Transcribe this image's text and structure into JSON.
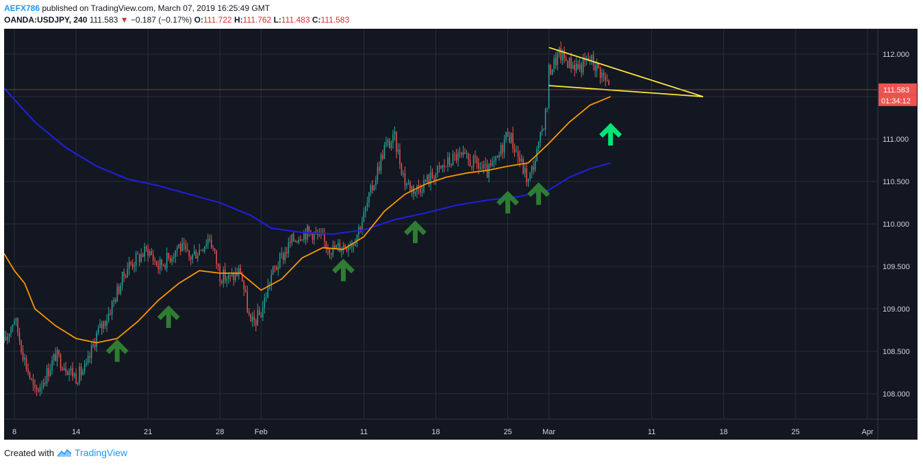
{
  "header": {
    "author": "AEFX786",
    "published_text": "published on TradingView.com, March 07, 2019 16:25:49 GMT",
    "symbol": "OANDA:USDJPY, 240",
    "last": "111.583",
    "change_arrow": "▼",
    "change": "−0.187 (−0.17%)",
    "open_label": "O:",
    "open": "111.722",
    "high_label": "H:",
    "high": "111.762",
    "low_label": "L:",
    "low": "111.483",
    "close_label": "C:",
    "close": "111.583"
  },
  "footer": {
    "created_with": "Created with",
    "brand": "TradingView",
    "logo_icon": "tradingview-logo-icon"
  },
  "colors": {
    "background": "#131722",
    "grid": "#2a2e39",
    "up": "#26a69a",
    "down": "#ef5350",
    "ma_fast": "#ff9800",
    "ma_slow": "#1f1fd6",
    "triangle": "#ffeb3b",
    "arrow_dark": "#2e7d32",
    "arrow_bright": "#00e676",
    "price_line": "#ef5350",
    "price_label_bg": "#ef5350"
  },
  "price_label": "111.583",
  "countdown_label": "01:34:12",
  "chart_data": {
    "type": "candlestick",
    "symbol": "OANDA:USDJPY",
    "timeframe": "240",
    "y_axis": {
      "range": [
        107.7,
        112.3
      ],
      "ticks": [
        "108.000",
        "108.500",
        "109.000",
        "109.500",
        "110.000",
        "110.500",
        "111.000",
        "111.500",
        "112.000"
      ]
    },
    "x_axis": {
      "start": "2019-01-07",
      "end": "2019-04-02",
      "ticks": [
        {
          "date": "2019-01-08",
          "label": "8"
        },
        {
          "date": "2019-01-14",
          "label": "14"
        },
        {
          "date": "2019-01-21",
          "label": "21"
        },
        {
          "date": "2019-01-28",
          "label": "28"
        },
        {
          "date": "2019-02-01",
          "label": "Feb"
        },
        {
          "date": "2019-02-11",
          "label": "11"
        },
        {
          "date": "2019-02-18",
          "label": "18"
        },
        {
          "date": "2019-02-25",
          "label": "25"
        },
        {
          "date": "2019-03-01",
          "label": "Mar"
        },
        {
          "date": "2019-03-11",
          "label": "11"
        },
        {
          "date": "2019-03-18",
          "label": "18"
        },
        {
          "date": "2019-03-25",
          "label": "25"
        },
        {
          "date": "2019-04-01",
          "label": "Apr"
        }
      ]
    },
    "price_path": [
      [
        "2019-01-07",
        108.6
      ],
      [
        "2019-01-08",
        108.9
      ],
      [
        "2019-01-09",
        108.4
      ],
      [
        "2019-01-10",
        108.0
      ],
      [
        "2019-01-11",
        108.2
      ],
      [
        "2019-01-12",
        108.45
      ],
      [
        "2019-01-14",
        108.2
      ],
      [
        "2019-01-15",
        108.3
      ],
      [
        "2019-01-16",
        108.7
      ],
      [
        "2019-01-17",
        108.9
      ],
      [
        "2019-01-18",
        109.2
      ],
      [
        "2019-01-19",
        109.5
      ],
      [
        "2019-01-20",
        109.6
      ],
      [
        "2019-01-21",
        109.7
      ],
      [
        "2019-01-22",
        109.5
      ],
      [
        "2019-01-23",
        109.6
      ],
      [
        "2019-01-24",
        109.75
      ],
      [
        "2019-01-25",
        109.6
      ],
      [
        "2019-01-26",
        109.7
      ],
      [
        "2019-01-27",
        109.85
      ],
      [
        "2019-01-28",
        109.4
      ],
      [
        "2019-01-29",
        109.35
      ],
      [
        "2019-01-30",
        109.45
      ],
      [
        "2019-01-31",
        108.8
      ],
      [
        "2019-02-01",
        108.95
      ],
      [
        "2019-02-02",
        109.4
      ],
      [
        "2019-02-04",
        109.8
      ],
      [
        "2019-02-05",
        109.9
      ],
      [
        "2019-02-06",
        109.9
      ],
      [
        "2019-02-07",
        109.8
      ],
      [
        "2019-02-08",
        109.7
      ],
      [
        "2019-02-10",
        109.8
      ],
      [
        "2019-02-11",
        110.1
      ],
      [
        "2019-02-12",
        110.5
      ],
      [
        "2019-02-13",
        110.9
      ],
      [
        "2019-02-14",
        111.0
      ],
      [
        "2019-02-15",
        110.5
      ],
      [
        "2019-02-16",
        110.4
      ],
      [
        "2019-02-17",
        110.5
      ],
      [
        "2019-02-18",
        110.6
      ],
      [
        "2019-02-19",
        110.7
      ],
      [
        "2019-02-20",
        110.8
      ],
      [
        "2019-02-21",
        110.75
      ],
      [
        "2019-02-22",
        110.7
      ],
      [
        "2019-02-23",
        110.6
      ],
      [
        "2019-02-24",
        110.75
      ],
      [
        "2019-02-25",
        111.1
      ],
      [
        "2019-02-26",
        110.8
      ],
      [
        "2019-02-27",
        110.5
      ],
      [
        "2019-02-28",
        110.9
      ],
      [
        "2019-02-29",
        111.5
      ],
      [
        "2019-03-01",
        111.8
      ],
      [
        "2019-03-02",
        112.0
      ],
      [
        "2019-03-03",
        111.9
      ],
      [
        "2019-03-04",
        111.85
      ],
      [
        "2019-03-05",
        111.95
      ],
      [
        "2019-03-06",
        111.8
      ],
      [
        "2019-03-07",
        111.583
      ]
    ],
    "ma_fast": [
      [
        "2019-01-07",
        109.65
      ],
      [
        "2019-01-08",
        109.45
      ],
      [
        "2019-01-09",
        109.3
      ],
      [
        "2019-01-10",
        109.0
      ],
      [
        "2019-01-12",
        108.8
      ],
      [
        "2019-01-14",
        108.65
      ],
      [
        "2019-01-16",
        108.6
      ],
      [
        "2019-01-18",
        108.65
      ],
      [
        "2019-01-20",
        108.85
      ],
      [
        "2019-01-22",
        109.1
      ],
      [
        "2019-01-24",
        109.3
      ],
      [
        "2019-01-26",
        109.45
      ],
      [
        "2019-01-28",
        109.42
      ],
      [
        "2019-01-30",
        109.42
      ],
      [
        "2019-02-01",
        109.22
      ],
      [
        "2019-02-03",
        109.35
      ],
      [
        "2019-02-05",
        109.6
      ],
      [
        "2019-02-07",
        109.72
      ],
      [
        "2019-02-09",
        109.7
      ],
      [
        "2019-02-11",
        109.85
      ],
      [
        "2019-02-13",
        110.15
      ],
      [
        "2019-02-15",
        110.35
      ],
      [
        "2019-02-17",
        110.47
      ],
      [
        "2019-02-19",
        110.55
      ],
      [
        "2019-02-21",
        110.6
      ],
      [
        "2019-02-23",
        110.63
      ],
      [
        "2019-02-25",
        110.68
      ],
      [
        "2019-02-27",
        110.72
      ],
      [
        "2019-03-01",
        110.95
      ],
      [
        "2019-03-03",
        111.2
      ],
      [
        "2019-03-05",
        111.4
      ],
      [
        "2019-03-07",
        111.5
      ]
    ],
    "ma_slow": [
      [
        "2019-01-07",
        111.6
      ],
      [
        "2019-01-10",
        111.2
      ],
      [
        "2019-01-13",
        110.9
      ],
      [
        "2019-01-16",
        110.68
      ],
      [
        "2019-01-19",
        110.53
      ],
      [
        "2019-01-22",
        110.45
      ],
      [
        "2019-01-25",
        110.35
      ],
      [
        "2019-01-28",
        110.25
      ],
      [
        "2019-01-31",
        110.1
      ],
      [
        "2019-02-02",
        109.95
      ],
      [
        "2019-02-05",
        109.9
      ],
      [
        "2019-02-08",
        109.88
      ],
      [
        "2019-02-11",
        109.93
      ],
      [
        "2019-02-14",
        110.05
      ],
      [
        "2019-02-17",
        110.13
      ],
      [
        "2019-02-20",
        110.22
      ],
      [
        "2019-02-23",
        110.28
      ],
      [
        "2019-02-26",
        110.32
      ],
      [
        "2019-03-01",
        110.4
      ],
      [
        "2019-03-03",
        110.55
      ],
      [
        "2019-03-05",
        110.65
      ],
      [
        "2019-03-07",
        110.72
      ]
    ],
    "triangle": {
      "upper": [
        [
          "2019-03-01",
          112.08
        ],
        [
          "2019-03-16",
          111.5
        ]
      ],
      "lower": [
        [
          "2019-03-01",
          111.63
        ],
        [
          "2019-03-16",
          111.5
        ]
      ]
    },
    "support_arrows": [
      {
        "date": "2019-01-18",
        "price": 108.6,
        "style": "dark"
      },
      {
        "date": "2019-01-23",
        "price": 109.0,
        "style": "dark"
      },
      {
        "date": "2019-02-09",
        "price": 109.55,
        "style": "dark"
      },
      {
        "date": "2019-02-16",
        "price": 110.0,
        "style": "dark"
      },
      {
        "date": "2019-02-25",
        "price": 110.35,
        "style": "dark"
      },
      {
        "date": "2019-02-28",
        "price": 110.45,
        "style": "dark"
      },
      {
        "date": "2019-03-07",
        "price": 111.15,
        "style": "bright"
      }
    ],
    "last_price": 111.583
  }
}
